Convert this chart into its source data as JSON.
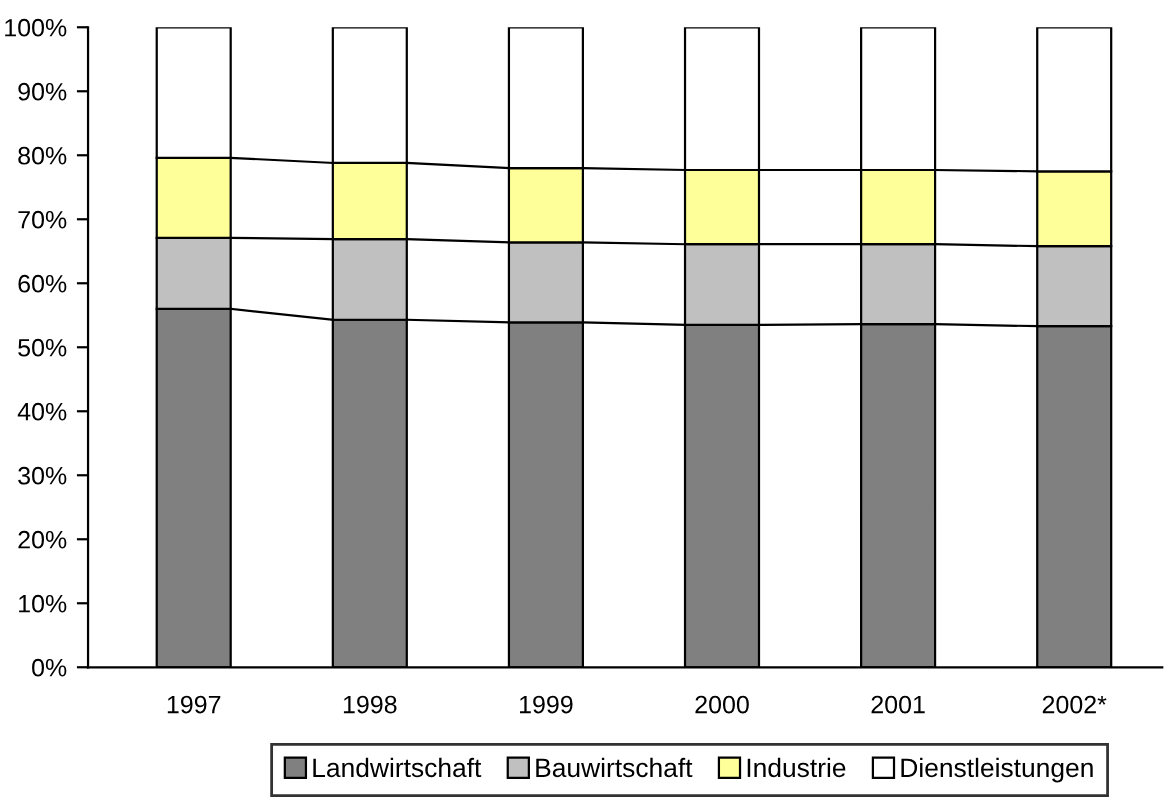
{
  "chart_data": {
    "type": "bar",
    "stacked": true,
    "categories": [
      "1997",
      "1998",
      "1999",
      "2000",
      "2001",
      "2002*"
    ],
    "series": [
      {
        "name": "Landwirtschaft",
        "color": "#808080",
        "values": [
          56.0,
          54.3,
          53.9,
          53.5,
          53.6,
          53.3
        ]
      },
      {
        "name": "Bauwirtschaft",
        "color": "#c0c0c0",
        "values": [
          11.1,
          12.6,
          12.5,
          12.6,
          12.5,
          12.5
        ]
      },
      {
        "name": "Industrie",
        "color": "#ffff99",
        "values": [
          12.5,
          11.9,
          11.6,
          11.6,
          11.6,
          11.7
        ]
      },
      {
        "name": "Dienstleistungen",
        "color": "#ffffff",
        "values": [
          20.4,
          21.2,
          22.0,
          22.3,
          22.3,
          22.5
        ]
      }
    ],
    "ylim": [
      0,
      100
    ],
    "yticks": [
      {
        "value": 0,
        "label": "0%"
      },
      {
        "value": 10,
        "label": "10%"
      },
      {
        "value": 20,
        "label": "20%"
      },
      {
        "value": 30,
        "label": "30%"
      },
      {
        "value": 40,
        "label": "40%"
      },
      {
        "value": 50,
        "label": "50%"
      },
      {
        "value": 60,
        "label": "60%"
      },
      {
        "value": 70,
        "label": "70%"
      },
      {
        "value": 80,
        "label": "80%"
      },
      {
        "value": 90,
        "label": "90%"
      },
      {
        "value": 100,
        "label": "100%"
      }
    ],
    "grid": false,
    "legend": "bottom"
  }
}
